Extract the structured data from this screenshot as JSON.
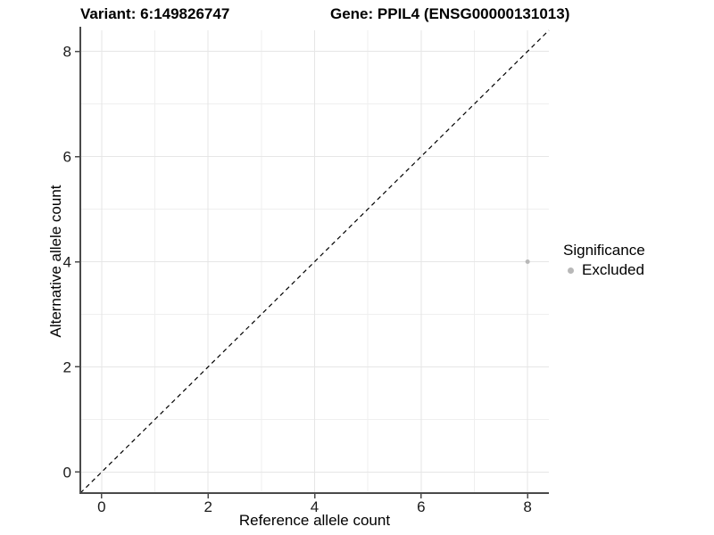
{
  "header": {
    "variant_title": "Variant: 6:149826747",
    "gene_title": "Gene: PPIL4 (ENSG00000131013)"
  },
  "axes": {
    "x_label": "Reference allele count",
    "y_label": "Alternative allele count"
  },
  "legend": {
    "title": "Significance",
    "items": [
      {
        "label": "Excluded",
        "color": "#b8b8b8"
      }
    ]
  },
  "colors": {
    "background": "#ffffff",
    "grid_major": "#e6e6e6",
    "grid_minor": "#efefef",
    "axis_line": "#4a4a4a",
    "tick_label": "#1a1a1a",
    "reference_line": "#000000",
    "point": "#b8b8b8"
  },
  "chart_data": {
    "type": "scatter",
    "title": "Variant: 6:149826747   Gene: PPIL4 (ENSG00000131013)",
    "xlabel": "Reference allele count",
    "ylabel": "Alternative allele count",
    "xlim": [
      -0.4,
      8.4
    ],
    "ylim": [
      -0.4,
      8.4
    ],
    "x_ticks": [
      0,
      2,
      4,
      6,
      8
    ],
    "y_ticks": [
      0,
      2,
      4,
      6,
      8
    ],
    "x_minor_gridlines": [
      1,
      3,
      5,
      7
    ],
    "y_minor_gridlines": [
      1,
      3,
      5,
      7
    ],
    "grid": true,
    "legend_title": "Significance",
    "legend_position": "right",
    "series": [
      {
        "name": "Excluded",
        "color": "#b8b8b8",
        "points": [
          {
            "x": 8,
            "y": 4
          }
        ]
      }
    ],
    "reference_line": {
      "kind": "identity",
      "equation": "y = x",
      "style": "dashed",
      "color": "#000000"
    }
  }
}
